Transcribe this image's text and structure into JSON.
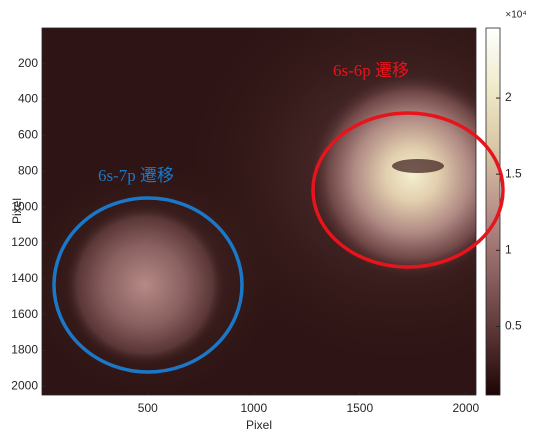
{
  "chart_data": {
    "type": "image",
    "xlabel": "Pixel",
    "ylabel": "Pixel",
    "xlim": [
      1,
      2048
    ],
    "xticks": [
      500,
      1000,
      1500,
      2000
    ],
    "ylim": [
      1,
      2048
    ],
    "yticks": [
      200,
      400,
      600,
      800,
      1000,
      1200,
      1400,
      1600,
      1800,
      2000
    ],
    "y_direction": "reverse",
    "colorbar": {
      "lim": [
        0.05,
        2.46
      ],
      "ticks": [
        0.5,
        1,
        1.5,
        2
      ],
      "multiplier": "×10⁴",
      "colormap": [
        "#1e0505",
        "#5a3434",
        "#8c6262",
        "#b89088",
        "#d8c4a4",
        "#eeeac8",
        "#ffffff"
      ]
    },
    "annotations": [
      {
        "text": "6s-6p 遷移",
        "color": "#e8141c"
      },
      {
        "text": "6s-7p 遷移",
        "color": "#1b78c8"
      }
    ]
  }
}
